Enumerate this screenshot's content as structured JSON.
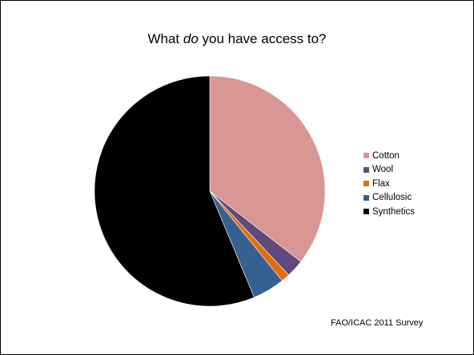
{
  "title": {
    "before": "What ",
    "emphasis": "do",
    "after": " you have access to?"
  },
  "source": "FAO/ICAC 2011 Survey",
  "chart_data": {
    "type": "pie",
    "title": "What do you have access to?",
    "legend_position": "right",
    "categories": [
      "Cotton",
      "Wool",
      "Flax",
      "Cellulosic",
      "Synthetics"
    ],
    "values": [
      35.5,
      2.5,
      1.2,
      4.5,
      56.3
    ],
    "unit": "%",
    "colors": [
      "#d99694",
      "#604a7b",
      "#e46c0a",
      "#376092",
      "#000000"
    ],
    "start_angle_deg": 0,
    "direction": "clockwise"
  }
}
